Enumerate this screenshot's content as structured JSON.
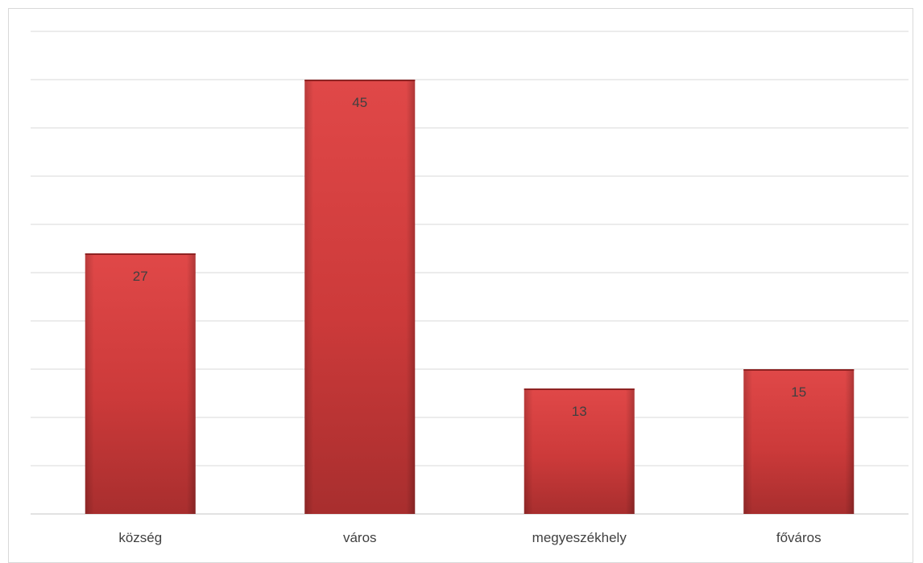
{
  "chart_data": {
    "type": "bar",
    "categories": [
      "község",
      "város",
      "megyeszékhely",
      "főváros"
    ],
    "values": [
      27,
      45,
      13,
      15
    ],
    "title": "",
    "xlabel": "",
    "ylabel": "",
    "ylim": [
      0,
      50
    ],
    "grid": true,
    "gridline_count": 10,
    "legend": "none",
    "data_labels": "inside-end",
    "colors": {
      "bar_light": "#e04848",
      "bar_mid": "#cc3a3a",
      "bar_dark": "#a82e2e",
      "bar_edge": "#8e2323",
      "gridline": "#d9d9d9",
      "text": "#404040"
    }
  }
}
